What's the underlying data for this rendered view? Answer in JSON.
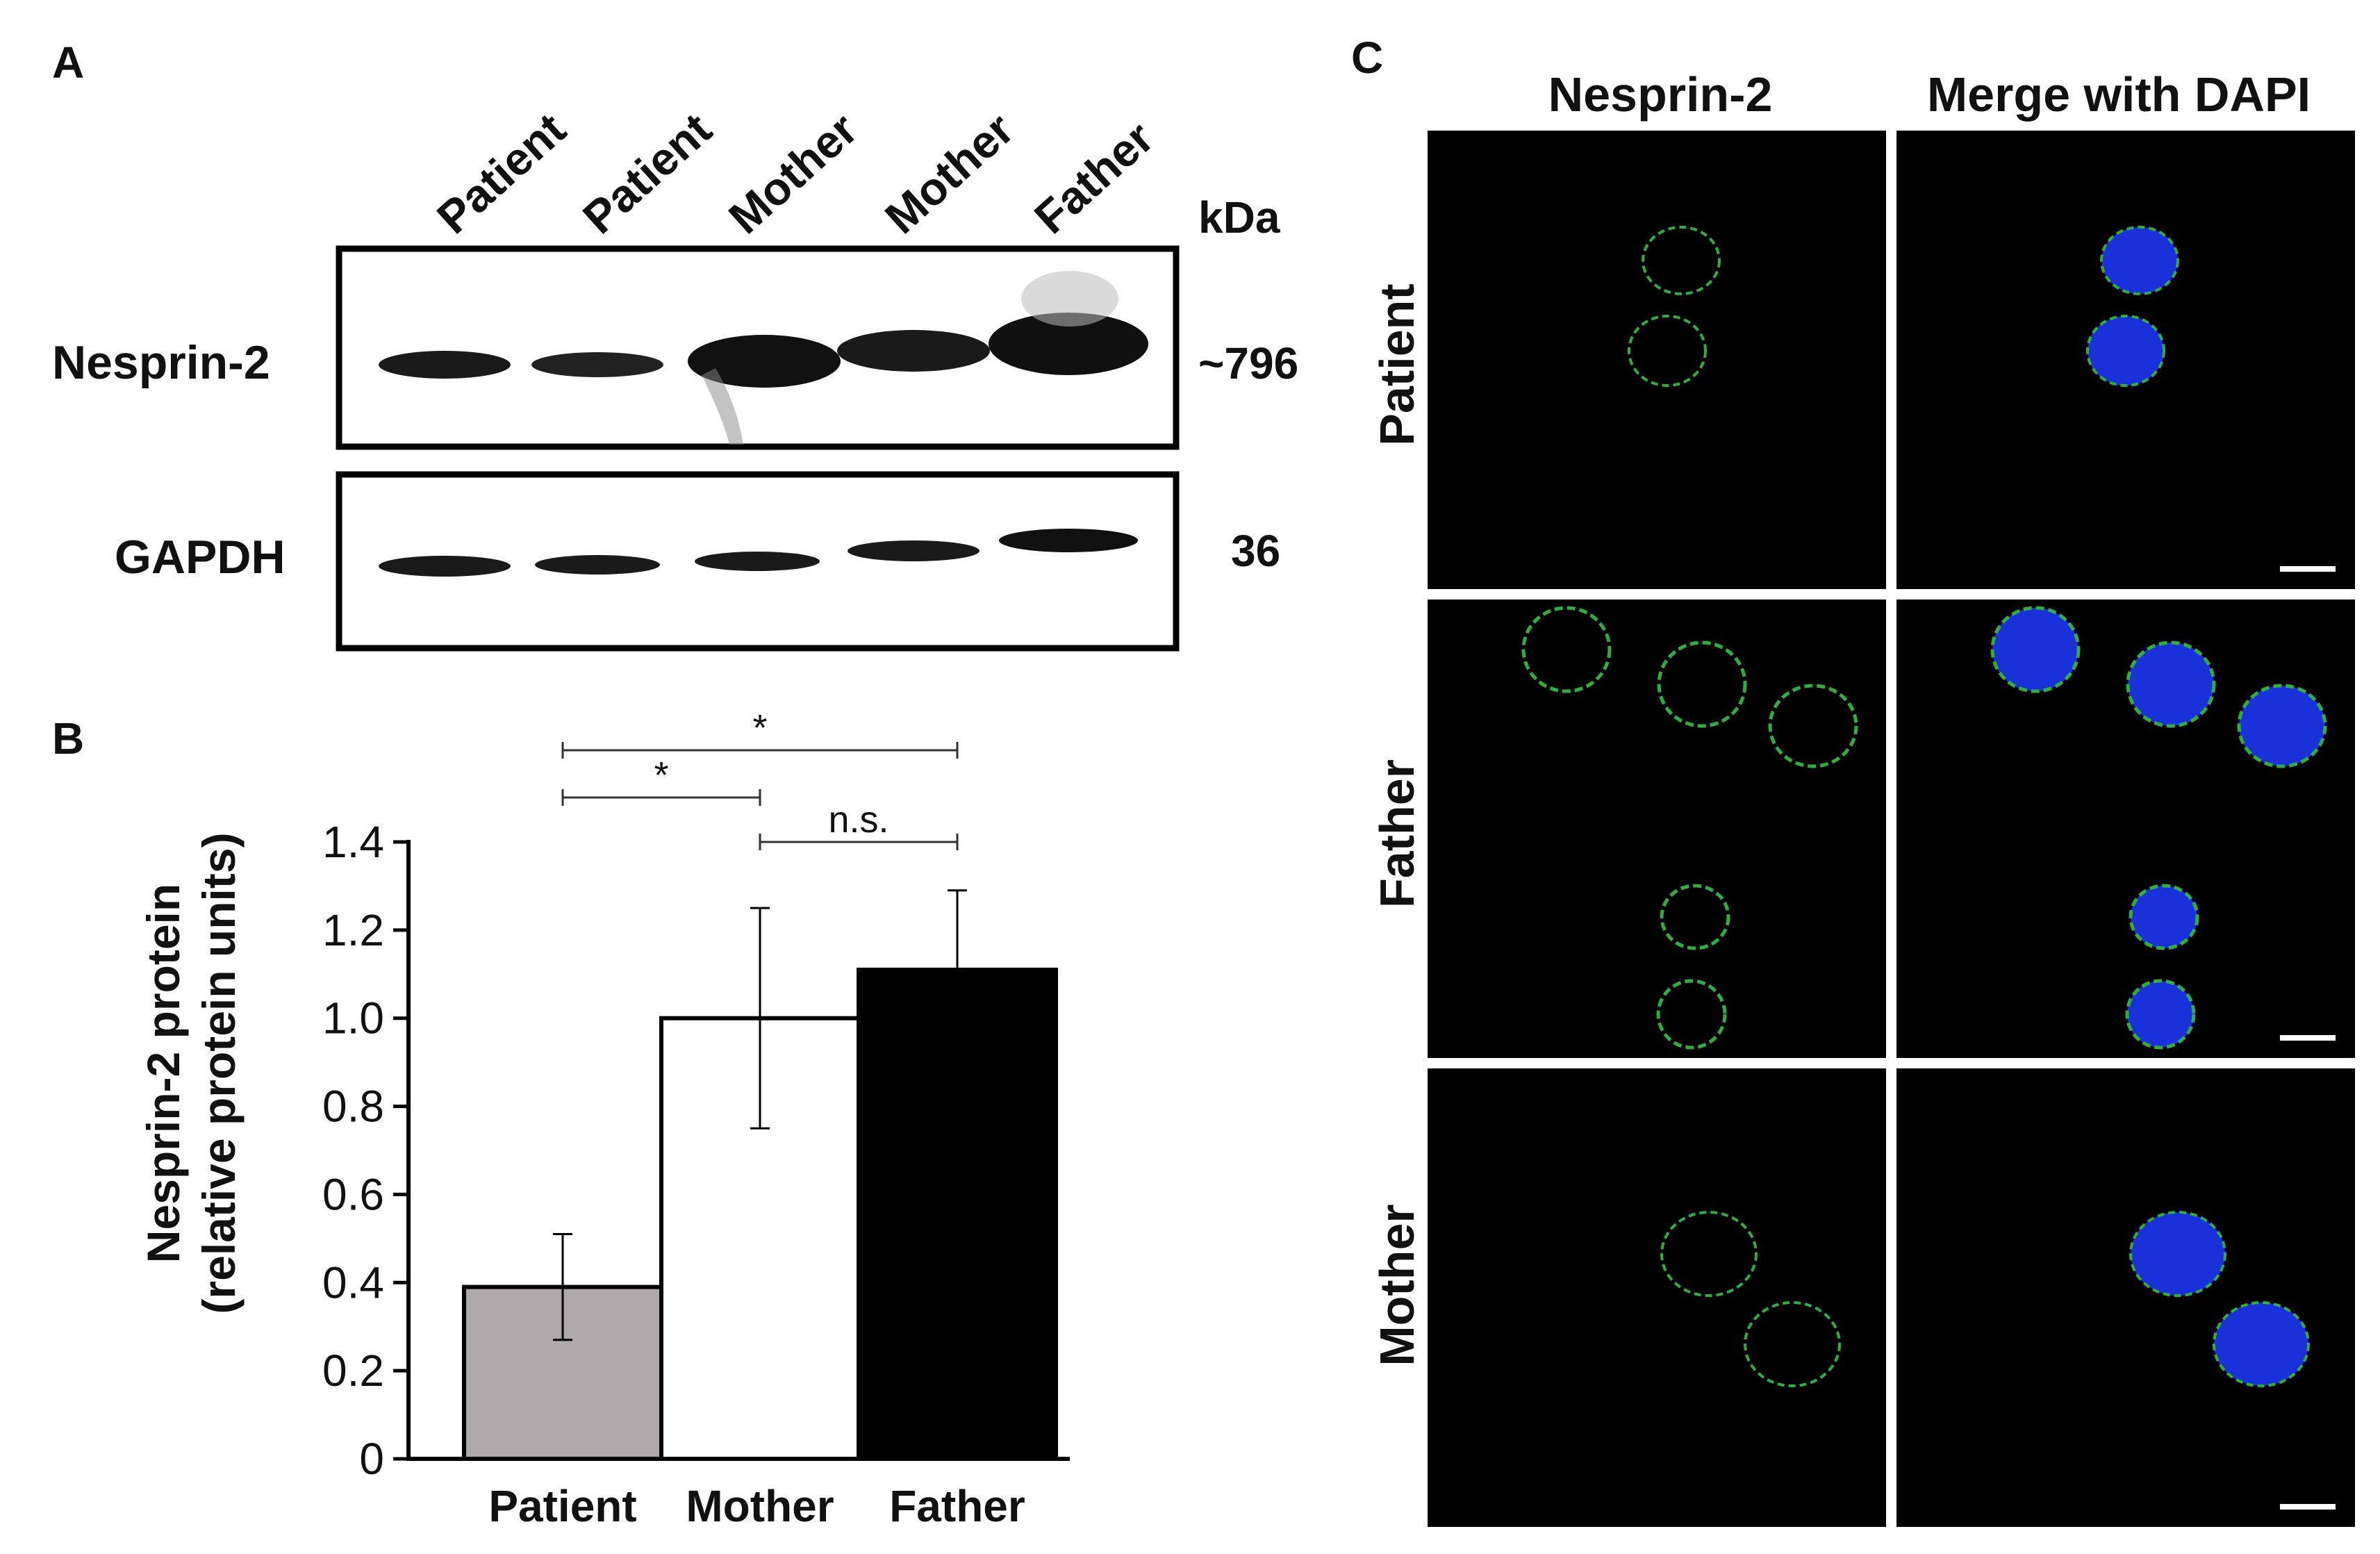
{
  "panels": {
    "a": "A",
    "b": "B",
    "c": "C"
  },
  "blot": {
    "lanes": [
      "Patient",
      "Patient",
      "Mother",
      "Mother",
      "Father"
    ],
    "kda_header": "kDa",
    "rows": [
      {
        "protein": "Nesprin-2",
        "kda": "~796",
        "band_intensity": [
          0.55,
          0.45,
          1.0,
          0.85,
          1.05
        ]
      },
      {
        "protein": "GAPDH",
        "kda": "36",
        "band_intensity": [
          0.6,
          0.55,
          0.6,
          0.65,
          0.7
        ]
      }
    ]
  },
  "chart_data": {
    "type": "bar",
    "categories": [
      "Patient",
      "Mother",
      "Father"
    ],
    "values": [
      0.39,
      1.0,
      1.11
    ],
    "errors": [
      0.12,
      0.25,
      0.18
    ],
    "bar_colors": [
      "#aeaaab",
      "#ffffff",
      "#000000"
    ],
    "ylabel_line1": "Nesprin-2 protein",
    "ylabel_line2": "(relative protein units)",
    "ylim": [
      0,
      1.4
    ],
    "yticks": [
      "0",
      "0.2",
      "0.4",
      "0.6",
      "0.8",
      "1.0",
      "1.2",
      "1.4"
    ],
    "grid": false,
    "significance": [
      {
        "from": "Patient",
        "to": "Father",
        "label": "*"
      },
      {
        "from": "Patient",
        "to": "Mother",
        "label": "*"
      },
      {
        "from": "Mother",
        "to": "Father",
        "label": "n.s."
      }
    ]
  },
  "microscopy": {
    "columns": [
      "Nesprin-2",
      "Merge with DAPI"
    ],
    "rows": [
      "Patient",
      "Father",
      "Mother"
    ],
    "colors": {
      "membrane": "#2fae3f",
      "nucleus": "#1a30d8",
      "background": "#000000"
    }
  }
}
